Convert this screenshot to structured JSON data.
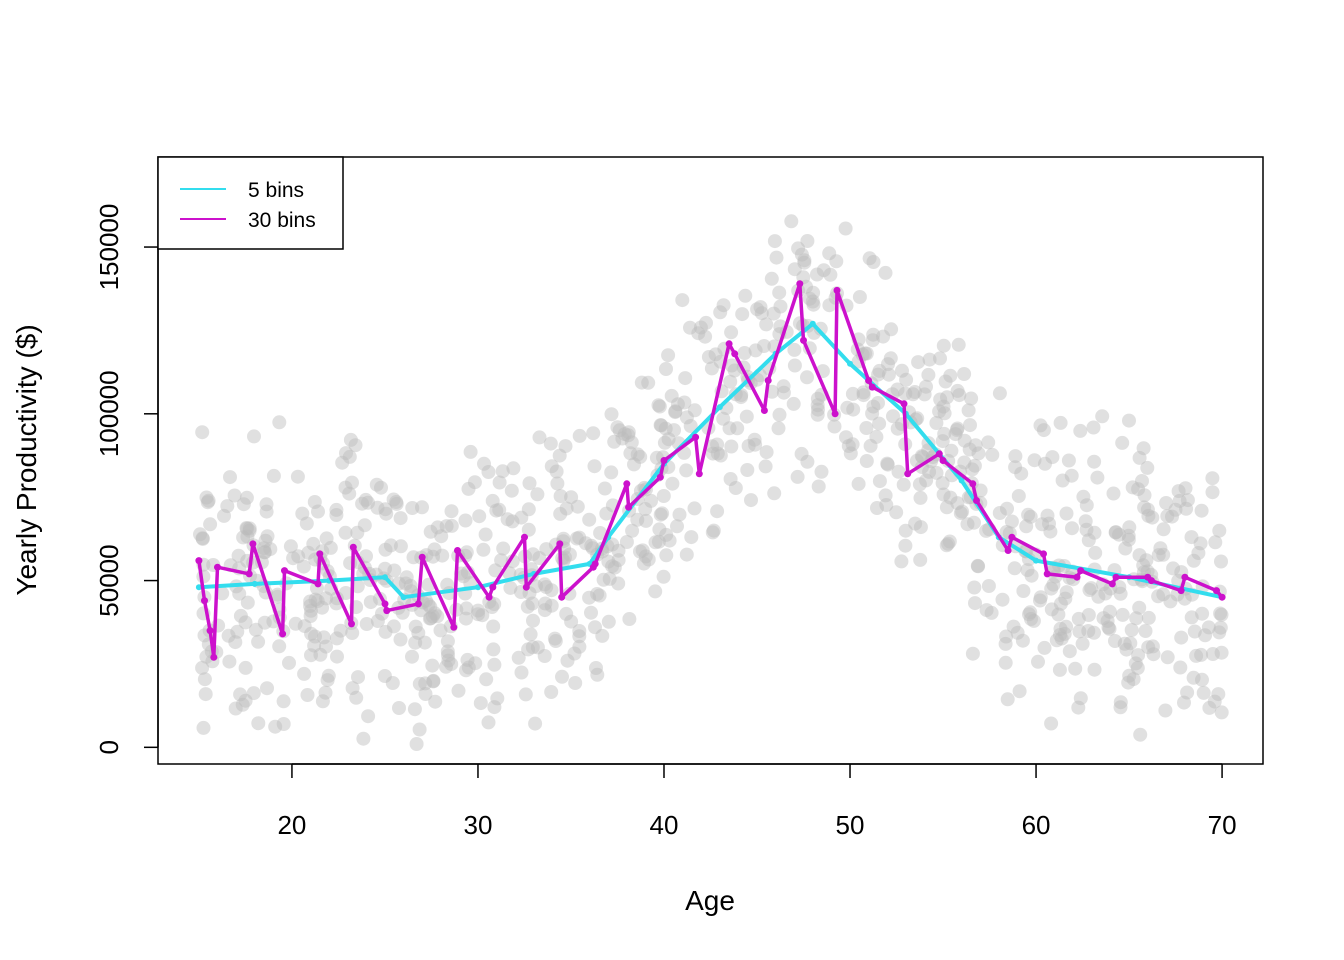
{
  "chart_data": {
    "type": "scatter",
    "title": "",
    "xlabel": "Age",
    "ylabel": "Yearly Productivity ($)",
    "xlim": [
      12.8,
      72.2
    ],
    "ylim": [
      -5000,
      177000
    ],
    "x_ticks": [
      20,
      30,
      40,
      50,
      60,
      70
    ],
    "y_ticks": [
      0,
      50000,
      100000,
      150000
    ],
    "grid": false,
    "legend": {
      "placement": "top-left",
      "entries": [
        {
          "label": "5 bins",
          "color": "#33DDEE"
        },
        {
          "label": "30 bins",
          "color": "#CC11CC"
        }
      ]
    },
    "points_color": "#BBBBBB",
    "series": [
      {
        "name": "5 bins",
        "color": "#33DDEE",
        "x": [
          15,
          18,
          22,
          25,
          26,
          30,
          33,
          36,
          37,
          40,
          43,
          46,
          48,
          50,
          53,
          56,
          58,
          60,
          65,
          70
        ],
        "y": [
          48000,
          49000,
          50000,
          51000,
          45000,
          48000,
          52000,
          55000,
          63000,
          85000,
          102000,
          118000,
          127000,
          115000,
          100000,
          80000,
          63000,
          56000,
          51000,
          45000
        ]
      },
      {
        "name": "30 bins",
        "color": "#CC11CC",
        "x": [
          15.0,
          15.3,
          15.6,
          15.8,
          16.0,
          17.7,
          17.9,
          19.5,
          19.6,
          21.4,
          21.5,
          23.2,
          23.3,
          25.0,
          25.1,
          26.8,
          27.0,
          28.7,
          28.9,
          30.6,
          30.8,
          32.5,
          32.6,
          34.4,
          34.5,
          36.2,
          36.3,
          38.0,
          38.1,
          39.8,
          40.0,
          41.7,
          41.9,
          43.5,
          43.8,
          45.4,
          45.6,
          47.3,
          47.5,
          49.2,
          49.3,
          51.0,
          51.2,
          52.9,
          53.1,
          54.8,
          55.0,
          56.6,
          56.8,
          58.5,
          58.7,
          60.4,
          60.6,
          62.2,
          62.4,
          64.1,
          64.3,
          66.0,
          66.2,
          67.8,
          68.0,
          69.7,
          70.0
        ],
        "y": [
          56000,
          44000,
          35000,
          27000,
          54000,
          52000,
          61000,
          34000,
          53000,
          49000,
          58000,
          37000,
          60000,
          43000,
          41000,
          43000,
          57000,
          36000,
          59000,
          45000,
          48000,
          63000,
          48000,
          61000,
          45000,
          54000,
          55000,
          79000,
          72000,
          81000,
          86000,
          93000,
          82000,
          121000,
          118000,
          101000,
          110000,
          139000,
          122000,
          100000,
          137000,
          110000,
          108000,
          103000,
          82000,
          88000,
          86000,
          79000,
          74000,
          59000,
          63000,
          58000,
          52000,
          51000,
          53000,
          49000,
          51000,
          51000,
          50000,
          47000,
          51000,
          47000,
          45000
        ]
      }
    ]
  }
}
